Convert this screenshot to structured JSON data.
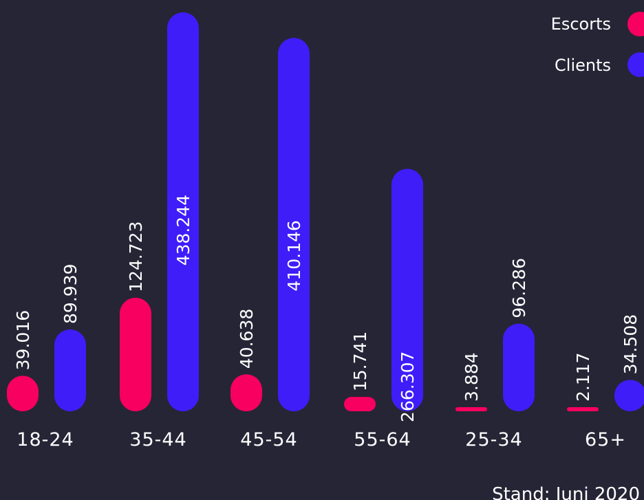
{
  "chart_data": {
    "type": "bar",
    "categories": [
      "18-24",
      "35-44",
      "45-54",
      "55-64",
      "25-34",
      "65+"
    ],
    "series": [
      {
        "name": "Escorts",
        "color": "#F7005F",
        "values": [
          39016,
          124723,
          40638,
          15741,
          3884,
          2117
        ],
        "labels": [
          "39.016",
          "124.723",
          "40.638",
          "15.741",
          "3.884",
          "2.117"
        ]
      },
      {
        "name": "Clients",
        "color": "#3E1DF9",
        "values": [
          89939,
          438244,
          410146,
          266307,
          96286,
          34508
        ],
        "labels": [
          "89.939",
          "438.244",
          "410.146",
          "266.307",
          "96.286",
          "34.508"
        ]
      }
    ],
    "legend_position": "top-right",
    "grid": false,
    "ylim": [
      0,
      438244
    ],
    "footer": "Stand: Juni 2020"
  },
  "colors": {
    "background": "#262536",
    "text": "#FFFFFF"
  }
}
